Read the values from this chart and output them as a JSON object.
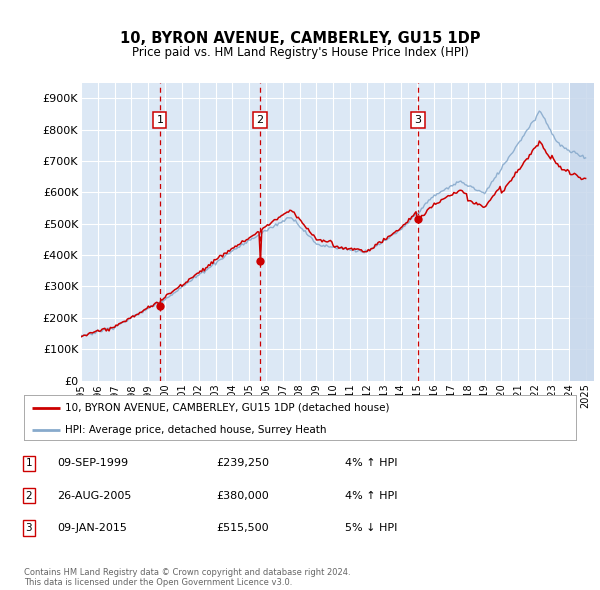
{
  "title": "10, BYRON AVENUE, CAMBERLEY, GU15 1DP",
  "subtitle": "Price paid vs. HM Land Registry's House Price Index (HPI)",
  "ylim": [
    0,
    950000
  ],
  "yticks": [
    0,
    100000,
    200000,
    300000,
    400000,
    500000,
    600000,
    700000,
    800000,
    900000
  ],
  "ytick_labels": [
    "£0",
    "£100K",
    "£200K",
    "£300K",
    "£400K",
    "£500K",
    "£600K",
    "£700K",
    "£800K",
    "£900K"
  ],
  "background_color": "#ffffff",
  "plot_bg_color": "#dce8f5",
  "grid_color": "#ffffff",
  "sale_color": "#cc0000",
  "hpi_color": "#88aacc",
  "vline_color": "#cc0000",
  "purchases": [
    {
      "label": "1",
      "date_x": 1999.69,
      "price": 239250
    },
    {
      "label": "2",
      "date_x": 2005.65,
      "price": 380000
    },
    {
      "label": "3",
      "date_x": 2015.03,
      "price": 515500
    }
  ],
  "legend_sale_label": "10, BYRON AVENUE, CAMBERLEY, GU15 1DP (detached house)",
  "legend_hpi_label": "HPI: Average price, detached house, Surrey Heath",
  "table_rows": [
    {
      "num": "1",
      "date": "09-SEP-1999",
      "price": "£239,250",
      "pct": "4% ↑ HPI"
    },
    {
      "num": "2",
      "date": "26-AUG-2005",
      "price": "£380,000",
      "pct": "4% ↑ HPI"
    },
    {
      "num": "3",
      "date": "09-JAN-2015",
      "price": "£515,500",
      "pct": "5% ↓ HPI"
    }
  ],
  "footer": "Contains HM Land Registry data © Crown copyright and database right 2024.\nThis data is licensed under the Open Government Licence v3.0.",
  "hatch_start_x": 2024.08,
  "xmin": 1995.0,
  "xmax": 2025.5
}
